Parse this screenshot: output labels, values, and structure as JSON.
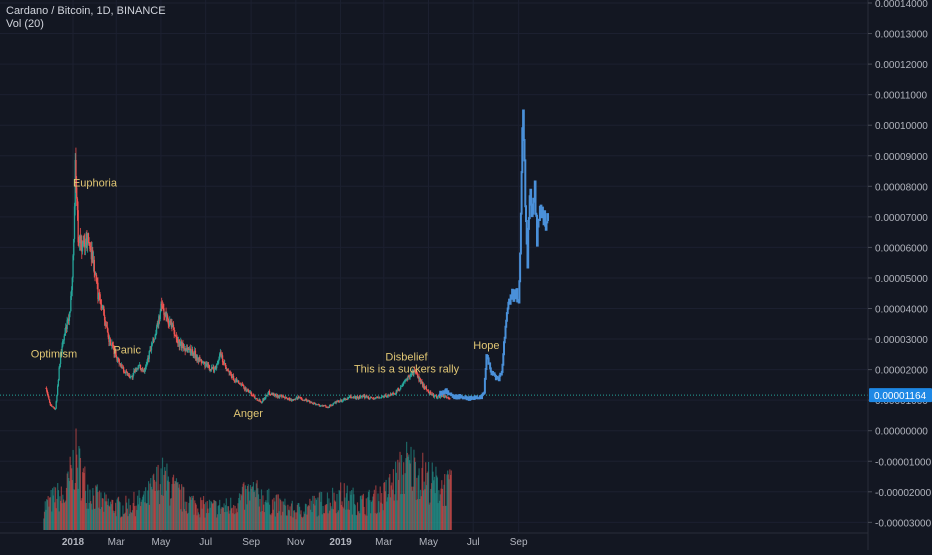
{
  "header": {
    "symbol": "Cardano / Bitcoin, 1D, BINANCE",
    "volume": "Vol (20)"
  },
  "colors": {
    "background": "#131722",
    "up": "#26a69a",
    "down": "#ef5350",
    "projection": "#4a90d9",
    "price_line": "#26a69a",
    "annotation": "#e0c674",
    "axis_text": "#b2b5be",
    "last_price_bg": "#1e88e5"
  },
  "chart_data": {
    "type": "candlestick",
    "title": "Cardano / Bitcoin, 1D, BINANCE",
    "y_axis_ticks": [
      "0.00014000",
      "0.00013000",
      "0.00012000",
      "0.00011000",
      "0.00010000",
      "0.00009000",
      "0.00008000",
      "0.00007000",
      "0.00006000",
      "0.00005000",
      "0.00004000",
      "0.00003000",
      "0.00002000",
      "0.00001000",
      "0.00000000",
      "-0.00001000",
      "-0.00002000",
      "-0.00003000"
    ],
    "y_tick_values": [
      0.00014,
      0.00013,
      0.00012,
      0.00011,
      0.0001,
      9e-05,
      8e-05,
      7e-05,
      6e-05,
      5e-05,
      4e-05,
      3e-05,
      2e-05,
      1e-05,
      0,
      -1e-05,
      -2e-05,
      -3e-05
    ],
    "last_price": "0.00001164",
    "last_price_value": 1.164e-05,
    "x_axis_labels": [
      "2018",
      "Mar",
      "May",
      "Jul",
      "Sep",
      "Nov",
      "2019",
      "Mar",
      "May",
      "Jul",
      "Sep"
    ],
    "x_label_dates": [
      "2018-01-01",
      "2018-03-01",
      "2018-05-01",
      "2018-07-01",
      "2018-09-01",
      "2018-11-01",
      "2019-01-01",
      "2019-03-01",
      "2019-05-01",
      "2019-07-01",
      "2019-09-01"
    ],
    "price_path": [
      [
        "2017-11-25",
        1.4e-05
      ],
      [
        "2017-12-01",
        8.5e-06
      ],
      [
        "2017-12-08",
        7e-06
      ],
      [
        "2017-12-15",
        2.5e-05
      ],
      [
        "2017-12-22",
        3.3e-05
      ],
      [
        "2017-12-28",
        3.8e-05
      ],
      [
        "2018-01-02",
        6.2e-05
      ],
      [
        "2018-01-04",
        8.8e-05
      ],
      [
        "2018-01-08",
        6.4e-05
      ],
      [
        "2018-01-14",
        6e-05
      ],
      [
        "2018-01-20",
        6.3e-05
      ],
      [
        "2018-01-27",
        5.8e-05
      ],
      [
        "2018-02-04",
        4.5e-05
      ],
      [
        "2018-02-10",
        4.1e-05
      ],
      [
        "2018-02-18",
        3e-05
      ],
      [
        "2018-02-26",
        2.6e-05
      ],
      [
        "2018-03-06",
        2.2e-05
      ],
      [
        "2018-03-14",
        1.9e-05
      ],
      [
        "2018-03-22",
        1.75e-05
      ],
      [
        "2018-03-30",
        2.1e-05
      ],
      [
        "2018-04-08",
        2e-05
      ],
      [
        "2018-04-16",
        2.6e-05
      ],
      [
        "2018-04-24",
        3.2e-05
      ],
      [
        "2018-05-02",
        4.1e-05
      ],
      [
        "2018-05-08",
        3.7e-05
      ],
      [
        "2018-05-16",
        3.4e-05
      ],
      [
        "2018-05-24",
        2.9e-05
      ],
      [
        "2018-06-03",
        2.7e-05
      ],
      [
        "2018-06-13",
        2.6e-05
      ],
      [
        "2018-06-23",
        2.3e-05
      ],
      [
        "2018-07-03",
        2.1e-05
      ],
      [
        "2018-07-13",
        2e-05
      ],
      [
        "2018-07-21",
        2.5e-05
      ],
      [
        "2018-07-29",
        2e-05
      ],
      [
        "2018-08-08",
        1.7e-05
      ],
      [
        "2018-08-18",
        1.5e-05
      ],
      [
        "2018-08-28",
        1.3e-05
      ],
      [
        "2018-09-06",
        1.1e-05
      ],
      [
        "2018-09-15",
        9.5e-06
      ],
      [
        "2018-09-25",
        1.25e-05
      ],
      [
        "2018-10-05",
        1.15e-05
      ],
      [
        "2018-10-15",
        1.08e-05
      ],
      [
        "2018-10-25",
        1.02e-05
      ],
      [
        "2018-11-05",
        1.08e-05
      ],
      [
        "2018-11-15",
        1e-05
      ],
      [
        "2018-11-25",
        9e-06
      ],
      [
        "2018-12-05",
        8.2e-06
      ],
      [
        "2018-12-15",
        7.8e-06
      ],
      [
        "2018-12-25",
        9.2e-06
      ],
      [
        "2019-01-05",
        1e-05
      ],
      [
        "2019-01-15",
        1.1e-05
      ],
      [
        "2019-01-25",
        1.08e-05
      ],
      [
        "2019-02-05",
        1.12e-05
      ],
      [
        "2019-02-15",
        1.05e-05
      ],
      [
        "2019-02-25",
        1.1e-05
      ],
      [
        "2019-03-07",
        1.15e-05
      ],
      [
        "2019-03-17",
        1.25e-05
      ],
      [
        "2019-03-27",
        1.5e-05
      ],
      [
        "2019-04-06",
        1.85e-05
      ],
      [
        "2019-04-12",
        1.95e-05
      ],
      [
        "2019-04-20",
        1.6e-05
      ],
      [
        "2019-04-30",
        1.3e-05
      ],
      [
        "2019-05-10",
        1.1e-05
      ],
      [
        "2019-05-20",
        1.15e-05
      ],
      [
        "2019-05-30",
        1.05e-05
      ]
    ],
    "projection_path": [
      [
        "2019-05-15",
        1.2e-05
      ],
      [
        "2019-05-25",
        1.3e-05
      ],
      [
        "2019-06-05",
        1.1e-05
      ],
      [
        "2019-06-15",
        1.12e-05
      ],
      [
        "2019-06-25",
        1.05e-05
      ],
      [
        "2019-07-05",
        1.08e-05
      ],
      [
        "2019-07-12",
        1.1e-05
      ],
      [
        "2019-07-16",
        1.3e-05
      ],
      [
        "2019-07-19",
        2.5e-05
      ],
      [
        "2019-07-24",
        2e-05
      ],
      [
        "2019-07-30",
        1.8e-05
      ],
      [
        "2019-08-05",
        1.7e-05
      ],
      [
        "2019-08-09",
        2e-05
      ],
      [
        "2019-08-12",
        2.8e-05
      ],
      [
        "2019-08-16",
        3.8e-05
      ],
      [
        "2019-08-22",
        4.4e-05
      ],
      [
        "2019-08-28",
        4.5e-05
      ],
      [
        "2019-09-01",
        4.2e-05
      ],
      [
        "2019-09-04",
        7e-05
      ],
      [
        "2019-09-07",
        0.00011
      ],
      [
        "2019-09-10",
        7.6e-05
      ],
      [
        "2019-09-13",
        5.6e-05
      ],
      [
        "2019-09-16",
        8e-05
      ],
      [
        "2019-09-19",
        6.8e-05
      ],
      [
        "2019-09-23",
        7.9e-05
      ],
      [
        "2019-09-26",
        6.2e-05
      ],
      [
        "2019-09-30",
        7e-05
      ],
      [
        "2019-10-04",
        7.2e-05
      ],
      [
        "2019-10-08",
        6.8e-05
      ],
      [
        "2019-10-11",
        7e-05
      ]
    ],
    "volume_envelope": [
      [
        "2017-11-22",
        0.3
      ],
      [
        "2017-12-10",
        0.45
      ],
      [
        "2017-12-20",
        0.4
      ],
      [
        "2018-01-04",
        0.95
      ],
      [
        "2018-01-20",
        0.55
      ],
      [
        "2018-02-10",
        0.35
      ],
      [
        "2018-03-10",
        0.3
      ],
      [
        "2018-04-10",
        0.4
      ],
      [
        "2018-05-01",
        0.7
      ],
      [
        "2018-06-01",
        0.4
      ],
      [
        "2018-07-01",
        0.3
      ],
      [
        "2018-08-01",
        0.3
      ],
      [
        "2018-09-01",
        0.5
      ],
      [
        "2018-10-01",
        0.35
      ],
      [
        "2018-11-01",
        0.25
      ],
      [
        "2018-12-01",
        0.35
      ],
      [
        "2019-01-01",
        0.45
      ],
      [
        "2019-02-01",
        0.35
      ],
      [
        "2019-03-01",
        0.45
      ],
      [
        "2019-04-01",
        0.85
      ],
      [
        "2019-04-20",
        0.75
      ],
      [
        "2019-05-10",
        0.6
      ],
      [
        "2019-06-01",
        0.55
      ]
    ],
    "annotations": [
      {
        "text": "Optimism",
        "date": "2017-12-06",
        "value": 2.4e-05
      },
      {
        "text": "Euphoria",
        "date": "2018-01-31",
        "value": 8e-05
      },
      {
        "text": "Panic",
        "date": "2018-03-16",
        "value": 2.52e-05
      },
      {
        "text": "Anger",
        "date": "2018-08-28",
        "value": 4.5e-06
      },
      {
        "text": "Disbelief",
        "date": "2019-04-01",
        "value": 2.3e-05
      },
      {
        "text": "This is a suckers rally",
        "date": "2019-04-01",
        "value": 1.9e-05
      },
      {
        "text": "Hope",
        "date": "2019-07-19",
        "value": 2.68e-05
      }
    ]
  }
}
